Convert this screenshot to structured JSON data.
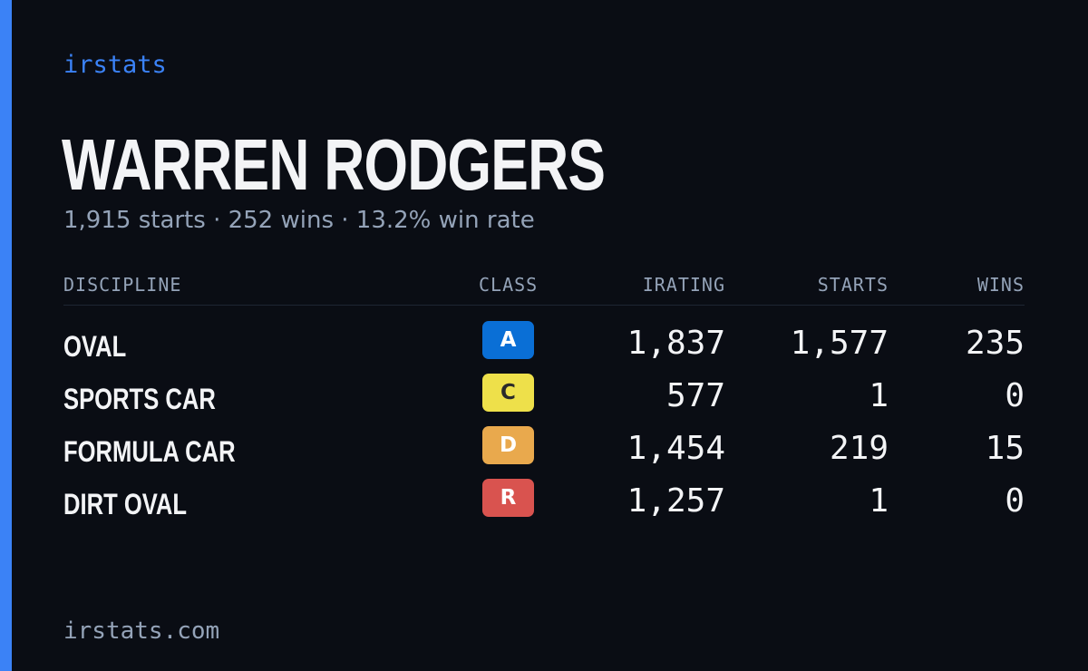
{
  "brand": "irstats",
  "driver": {
    "name": "WARREN RODGERS",
    "summary": "1,915 starts · 252 wins · 13.2% win rate"
  },
  "table": {
    "headers": {
      "discipline": "DISCIPLINE",
      "class": "CLASS",
      "irating": "IRATING",
      "starts": "STARTS",
      "wins": "WINS"
    },
    "rows": [
      {
        "discipline": "OVAL",
        "class": "A",
        "class_color": "#0a6fd6",
        "class_text_color": "#ffffff",
        "irating": "1,837",
        "starts": "1,577",
        "wins": "235"
      },
      {
        "discipline": "SPORTS CAR",
        "class": "C",
        "class_color": "#eee04a",
        "class_text_color": "#2a2a2a",
        "irating": "577",
        "starts": "1",
        "wins": "0"
      },
      {
        "discipline": "FORMULA CAR",
        "class": "D",
        "class_color": "#e9a94d",
        "class_text_color": "#ffffff",
        "irating": "1,454",
        "starts": "219",
        "wins": "15"
      },
      {
        "discipline": "DIRT OVAL",
        "class": "R",
        "class_color": "#d9534f",
        "class_text_color": "#ffffff",
        "irating": "1,257",
        "starts": "1",
        "wins": "0"
      }
    ]
  },
  "footer": "irstats.com",
  "colors": {
    "background": "#0a0d14",
    "accent": "#3b82f6",
    "text_primary": "#f3f4f6",
    "text_muted": "#94a3b8"
  }
}
